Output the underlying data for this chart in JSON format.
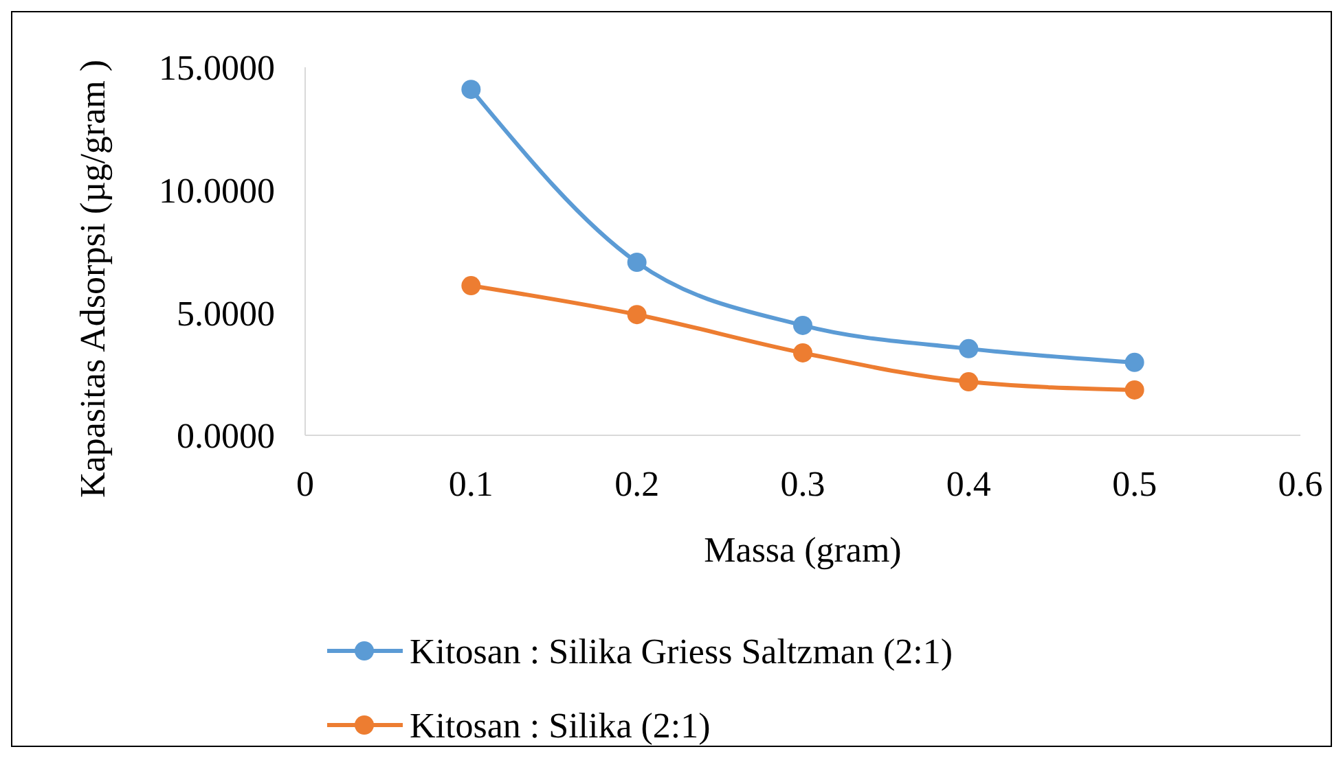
{
  "chart_data": {
    "type": "line",
    "xlabel": "Massa (gram)",
    "ylabel": "Kapasitas Adsorpsi (µg/gram )",
    "x": [
      0.1,
      0.2,
      0.3,
      0.4,
      0.5
    ],
    "series": [
      {
        "name": "Kitosan : Silika Griess Saltzman (2:1)",
        "color": "#5b9bd5",
        "values": [
          14.1,
          7.05,
          4.48,
          3.53,
          2.97
        ]
      },
      {
        "name": "Kitosan : Silika (2:1)",
        "color": "#ed7d31",
        "values": [
          6.1,
          4.92,
          3.36,
          2.18,
          1.85
        ]
      }
    ],
    "xlim": [
      0,
      0.6
    ],
    "xticks": [
      {
        "value": 0,
        "label": "0"
      },
      {
        "value": 0.1,
        "label": "0.1"
      },
      {
        "value": 0.2,
        "label": "0.2"
      },
      {
        "value": 0.3,
        "label": "0.3"
      },
      {
        "value": 0.4,
        "label": "0.4"
      },
      {
        "value": 0.5,
        "label": "0.5"
      },
      {
        "value": 0.6,
        "label": "0.6"
      }
    ],
    "ylim": [
      0,
      15
    ],
    "yticks": [
      {
        "value": 0,
        "label": "0.0000"
      },
      {
        "value": 5,
        "label": "5.0000"
      },
      {
        "value": 10,
        "label": "10.0000"
      },
      {
        "value": 15,
        "label": "15.0000"
      }
    ],
    "grid": false,
    "legend": "bottom",
    "marker": "circle",
    "line_style": "solid"
  }
}
